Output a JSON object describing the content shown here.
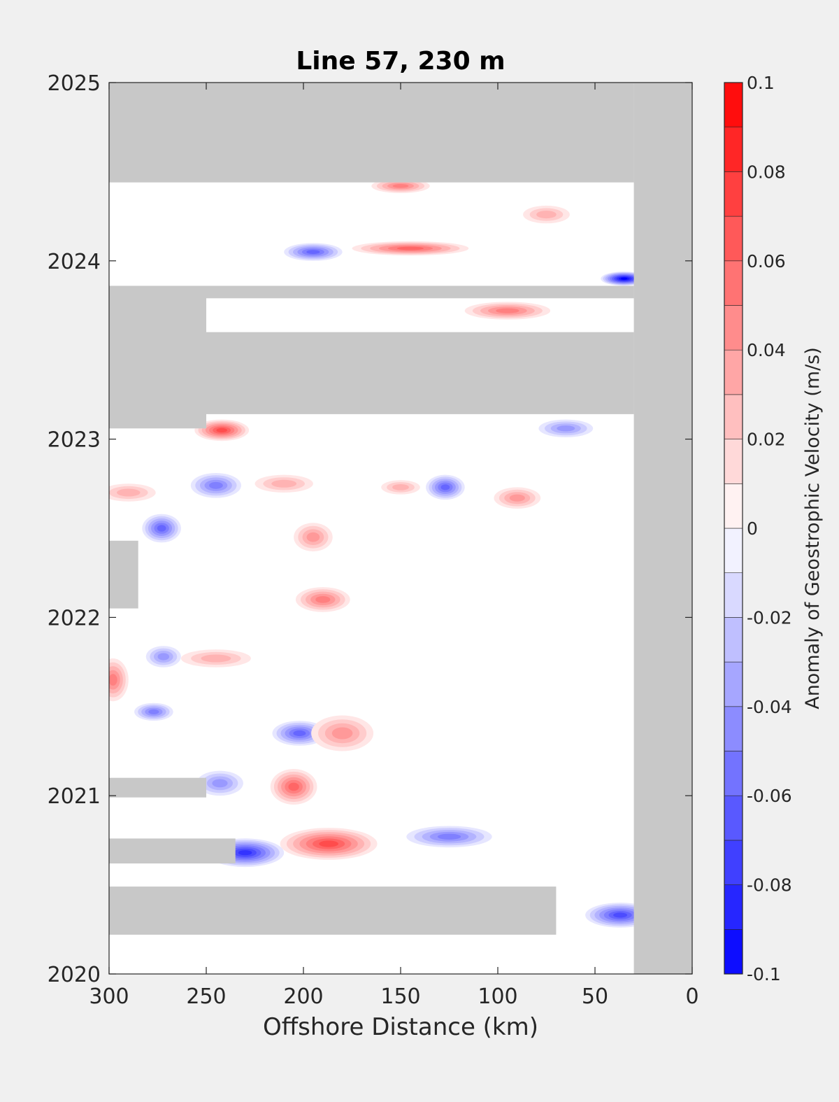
{
  "chart_data": {
    "type": "heatmap",
    "title": "Line 57, 230 m",
    "xlabel": "Offshore Distance (km)",
    "ylabel": "",
    "xlim": [
      300,
      0
    ],
    "ylim": [
      2020,
      2025
    ],
    "x_reversed": true,
    "xticks": [
      300,
      250,
      200,
      150,
      100,
      50,
      0
    ],
    "xtick_labels": [
      "300",
      "250",
      "200",
      "150",
      "100",
      "50",
      "0"
    ],
    "yticks": [
      2020,
      2021,
      2022,
      2023,
      2024,
      2025
    ],
    "ytick_labels": [
      "2020",
      "2021",
      "2022",
      "2023",
      "2024",
      "2025"
    ],
    "colorbar": {
      "label": "Anomaly of Geostrophic Velocity (m/s)",
      "range": [
        -0.1,
        0.1
      ],
      "levels": [
        -0.1,
        -0.09,
        -0.08,
        -0.07,
        -0.06,
        -0.05,
        -0.04,
        -0.03,
        -0.02,
        -0.01,
        0,
        0.01,
        0.02,
        0.03,
        0.04,
        0.05,
        0.06,
        0.07,
        0.08,
        0.09,
        0.1
      ],
      "tick_values": [
        0.1,
        0.08,
        0.06,
        0.04,
        0.02,
        0,
        -0.02,
        -0.04,
        -0.06,
        -0.08,
        -0.1
      ],
      "tick_labels": [
        "0.1",
        "0.08",
        "0.06",
        "0.04",
        "0.02",
        "0",
        "-0.02",
        "-0.04",
        "-0.06",
        "-0.08",
        "-0.1"
      ],
      "colormap": "blue-white-red",
      "negative_color": "#0000ff",
      "zero_color": "#ffffff",
      "positive_color": "#ff0000"
    },
    "missing_color": "#c8c8c8",
    "missing_regions": [
      {
        "x": [
          30,
          0
        ],
        "y": [
          2020,
          2025
        ],
        "note": "no data near shore"
      },
      {
        "x": [
          300,
          30
        ],
        "y": [
          2024.44,
          2025
        ]
      },
      {
        "x": [
          300,
          30
        ],
        "y": [
          2023.14,
          2023.6
        ]
      },
      {
        "x": [
          300,
          30
        ],
        "y": [
          2023.79,
          2023.86
        ]
      },
      {
        "x": [
          300,
          250
        ],
        "y": [
          2023.06,
          2023.86
        ]
      },
      {
        "x": [
          300,
          285
        ],
        "y": [
          2022.05,
          2022.43
        ]
      },
      {
        "x": [
          300,
          250
        ],
        "y": [
          2020.99,
          2021.1
        ]
      },
      {
        "x": [
          300,
          235
        ],
        "y": [
          2020.62,
          2020.76
        ]
      },
      {
        "x": [
          300,
          70
        ],
        "y": [
          2020.22,
          2020.49
        ]
      },
      {
        "x": [
          300,
          30
        ],
        "y": [
          2019.95,
          2019.97
        ]
      }
    ],
    "features": [
      {
        "x": 230,
        "y": 2020.68,
        "value": -0.08,
        "rx": 20,
        "ry": 0.08
      },
      {
        "x": 187,
        "y": 2020.73,
        "value": 0.07,
        "rx": 25,
        "ry": 0.09
      },
      {
        "x": 125,
        "y": 2020.77,
        "value": -0.05,
        "rx": 22,
        "ry": 0.06
      },
      {
        "x": 37,
        "y": 2020.33,
        "value": -0.07,
        "rx": 18,
        "ry": 0.07
      },
      {
        "x": 205,
        "y": 2021.05,
        "value": 0.06,
        "rx": 12,
        "ry": 0.1
      },
      {
        "x": 243,
        "y": 2021.07,
        "value": -0.04,
        "rx": 12,
        "ry": 0.07
      },
      {
        "x": 202,
        "y": 2021.35,
        "value": -0.06,
        "rx": 14,
        "ry": 0.07
      },
      {
        "x": 277,
        "y": 2021.47,
        "value": -0.05,
        "rx": 10,
        "ry": 0.05
      },
      {
        "x": 180,
        "y": 2021.35,
        "value": 0.04,
        "rx": 16,
        "ry": 0.1
      },
      {
        "x": 298,
        "y": 2021.65,
        "value": 0.05,
        "rx": 8,
        "ry": 0.12
      },
      {
        "x": 272,
        "y": 2021.78,
        "value": -0.04,
        "rx": 9,
        "ry": 0.06
      },
      {
        "x": 245,
        "y": 2021.77,
        "value": 0.03,
        "rx": 18,
        "ry": 0.05
      },
      {
        "x": 190,
        "y": 2022.1,
        "value": 0.05,
        "rx": 14,
        "ry": 0.07
      },
      {
        "x": 273,
        "y": 2022.5,
        "value": -0.06,
        "rx": 10,
        "ry": 0.08
      },
      {
        "x": 290,
        "y": 2022.7,
        "value": 0.03,
        "rx": 14,
        "ry": 0.05
      },
      {
        "x": 245,
        "y": 2022.74,
        "value": -0.05,
        "rx": 13,
        "ry": 0.07
      },
      {
        "x": 210,
        "y": 2022.75,
        "value": 0.03,
        "rx": 15,
        "ry": 0.05
      },
      {
        "x": 195,
        "y": 2022.45,
        "value": 0.04,
        "rx": 10,
        "ry": 0.08
      },
      {
        "x": 150,
        "y": 2022.73,
        "value": 0.03,
        "rx": 10,
        "ry": 0.04
      },
      {
        "x": 127,
        "y": 2022.73,
        "value": -0.06,
        "rx": 10,
        "ry": 0.07
      },
      {
        "x": 90,
        "y": 2022.67,
        "value": 0.04,
        "rx": 12,
        "ry": 0.06
      },
      {
        "x": 242,
        "y": 2023.05,
        "value": 0.07,
        "rx": 14,
        "ry": 0.06
      },
      {
        "x": 65,
        "y": 2023.06,
        "value": -0.04,
        "rx": 14,
        "ry": 0.05
      },
      {
        "x": 150,
        "y": 2024.42,
        "value": 0.05,
        "rx": 15,
        "ry": 0.04
      },
      {
        "x": 145,
        "y": 2024.07,
        "value": 0.06,
        "rx": 30,
        "ry": 0.04
      },
      {
        "x": 195,
        "y": 2024.05,
        "value": -0.06,
        "rx": 15,
        "ry": 0.05
      },
      {
        "x": 35,
        "y": 2023.9,
        "value": -0.1,
        "rx": 12,
        "ry": 0.04
      },
      {
        "x": 75,
        "y": 2024.26,
        "value": 0.03,
        "rx": 12,
        "ry": 0.05
      },
      {
        "x": 95,
        "y": 2023.72,
        "value": 0.05,
        "rx": 22,
        "ry": 0.05
      }
    ]
  }
}
